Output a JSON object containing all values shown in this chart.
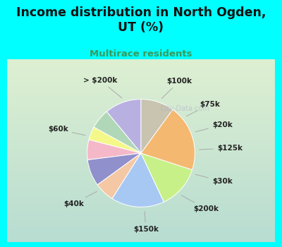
{
  "title": "Income distribution in North Ogden,\nUT (%)",
  "subtitle": "Multirace residents",
  "title_color": "#111111",
  "subtitle_color": "#3a9a5c",
  "bg_cyan": "#00ffff",
  "chart_bg": "#d8ede4",
  "labels": [
    "$100k",
    "$75k",
    "$20k",
    "$125k",
    "$30k",
    "$200k",
    "$150k",
    "$40k",
    "$60k",
    "> $200k"
  ],
  "sizes": [
    11,
    6,
    4,
    6,
    8,
    6,
    16,
    13,
    20,
    10
  ],
  "colors": [
    "#b8b0e0",
    "#b0d8b8",
    "#f4f888",
    "#f4b8c8",
    "#9090cc",
    "#f4c8a4",
    "#a8c8f4",
    "#c8f088",
    "#f4b870",
    "#c8c4b0"
  ],
  "startangle": 90,
  "watermark": "City-Data.com"
}
